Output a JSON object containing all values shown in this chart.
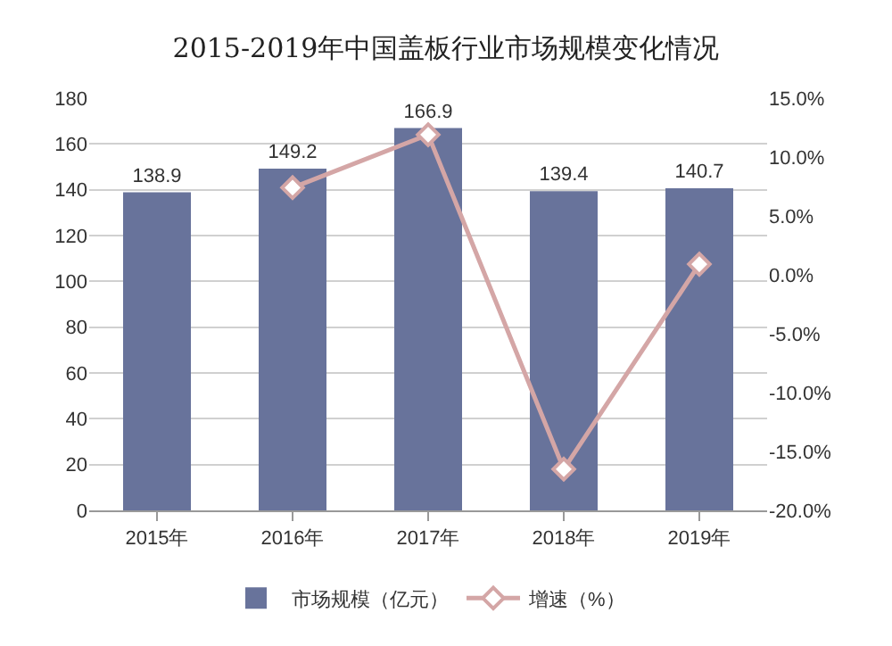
{
  "chart_data": {
    "type": "bar",
    "title": "2015-2019年中国盖板行业市场规模变化情况",
    "categories": [
      "2015年",
      "2016年",
      "2017年",
      "2018年",
      "2019年"
    ],
    "series": [
      {
        "name": "市场规模（亿元）",
        "color": "#68739b",
        "values": [
          138.9,
          149.2,
          166.9,
          139.4,
          140.7
        ],
        "value_labels": [
          "138.9",
          "149.2",
          "166.9",
          "139.4",
          "140.7"
        ]
      },
      {
        "name": "增速（%）",
        "type": "line",
        "axis": "y2",
        "color": "#d4a6a6",
        "marker": "diamond",
        "values": [
          null,
          7.4,
          11.9,
          -16.5,
          0.9
        ]
      }
    ],
    "ylim": [
      0,
      180
    ],
    "yticks": [
      0,
      20,
      40,
      60,
      80,
      100,
      120,
      140,
      160,
      180
    ],
    "y2lim": [
      -20,
      15
    ],
    "y2ticks": [
      {
        "value": -20,
        "label": "-20.0%"
      },
      {
        "value": -15,
        "label": "-15.0%"
      },
      {
        "value": -10,
        "label": "-10.0%"
      },
      {
        "value": -5,
        "label": "-5.0%"
      },
      {
        "value": 0,
        "label": "0.0%"
      },
      {
        "value": 5,
        "label": "5.0%"
      },
      {
        "value": 10,
        "label": "10.0%"
      },
      {
        "value": 15,
        "label": "15.0%"
      }
    ],
    "grid": "y",
    "legend": "bottom"
  }
}
